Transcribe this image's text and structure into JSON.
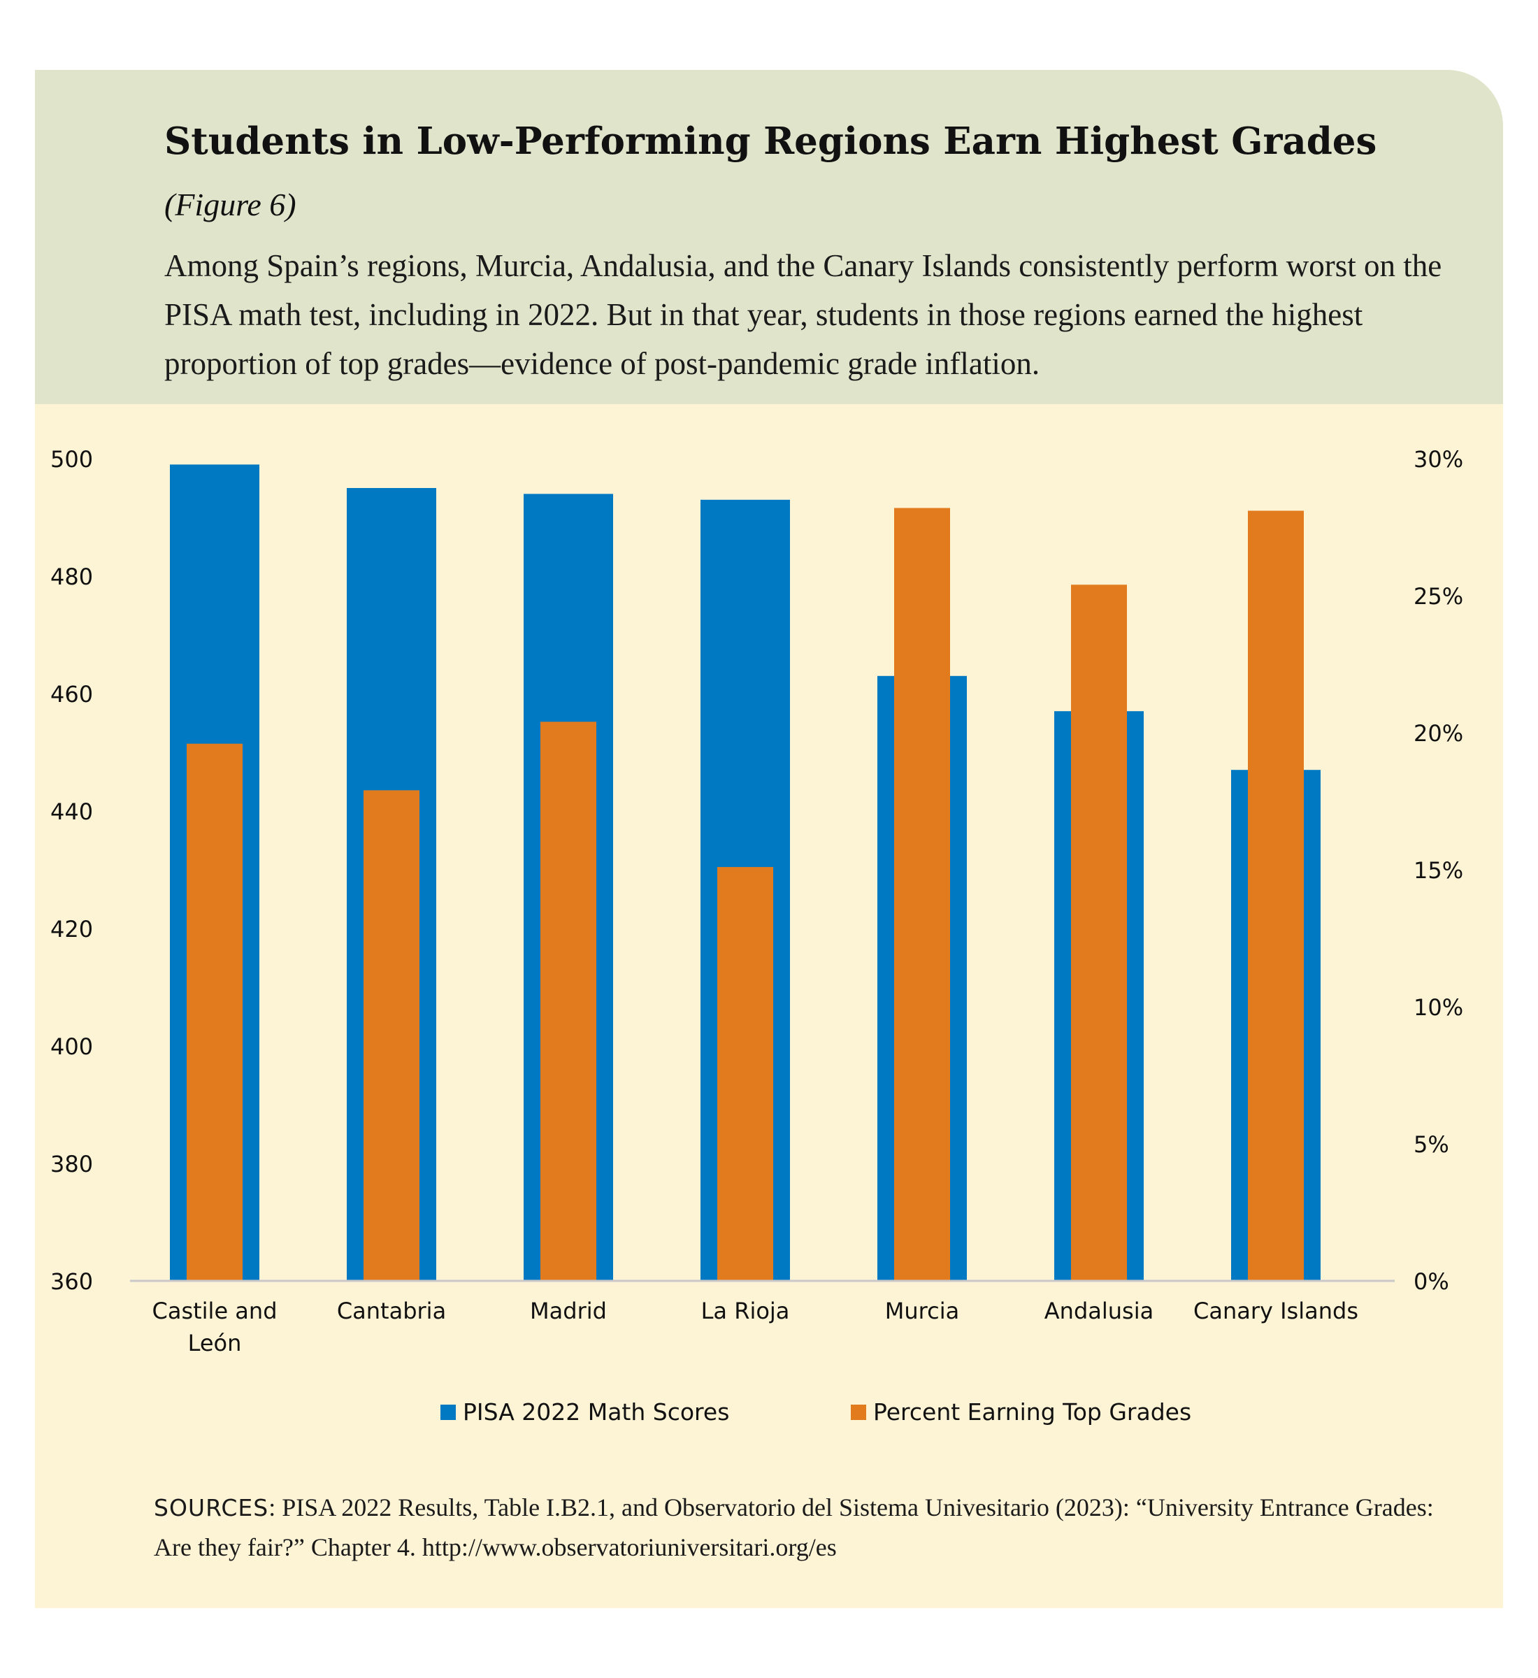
{
  "header": {
    "title": "Students in Low-Performing Regions Earn Highest Grades",
    "figure_ref": "(Figure 6)",
    "subtitle": "Among Spain’s regions, Murcia, Andalusia, and the Canary Islands consistently perform worst on the PISA math test, including in 2022. But in that year, students in those regions earned the highest proportion of top grades—evidence of post-pandemic grade inflation."
  },
  "chart_data": {
    "type": "bar",
    "categories": [
      "Castile and León",
      "Cantabria",
      "Madrid",
      "La Rioja",
      "Murcia",
      "Andalusia",
      "Canary Islands"
    ],
    "category_lines": [
      [
        "Castile and",
        "León"
      ],
      [
        "Cantabria"
      ],
      [
        "Madrid"
      ],
      [
        "La Rioja"
      ],
      [
        "Murcia"
      ],
      [
        "Andalusia"
      ],
      [
        "Canary Islands"
      ]
    ],
    "series": [
      {
        "name": "PISA 2022 Math Scores",
        "axis": "left",
        "color": "#0079c2",
        "values": [
          499,
          495,
          494,
          493,
          463,
          457,
          447
        ]
      },
      {
        "name": "Percent Earning Top Grades",
        "axis": "right",
        "color": "#e27b1e",
        "values": [
          19.6,
          17.9,
          20.4,
          15.1,
          28.2,
          25.4,
          28.1
        ]
      }
    ],
    "y_left": {
      "min": 360,
      "max": 500,
      "ticks": [
        "500",
        "480",
        "460",
        "440",
        "420",
        "400",
        "380",
        "360"
      ]
    },
    "y_right": {
      "min": 0,
      "max": 30,
      "ticks": [
        "30%",
        "25%",
        "20%",
        "15%",
        "10%",
        "5%",
        "0%"
      ]
    },
    "grid": false,
    "legend_position": "bottom"
  },
  "sources": {
    "label": "SOURCES",
    "text": ": PISA 2022 Results, Table I.B2.1, and Observatorio del Sistema Univesitario (2023): “University Entrance Grades: Are they fair?” Chapter 4. http://www.observatoriuniversitari.org/es"
  }
}
